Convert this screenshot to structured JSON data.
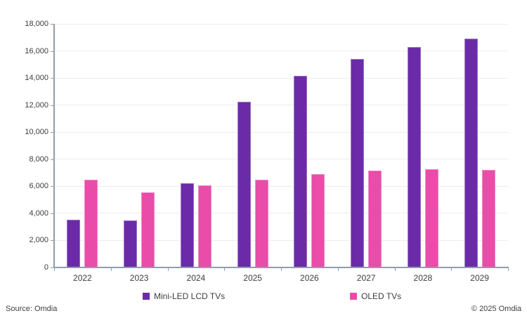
{
  "chart_data": {
    "type": "bar",
    "categories": [
      "2022",
      "2023",
      "2024",
      "2025",
      "2026",
      "2027",
      "2028",
      "2029"
    ],
    "series": [
      {
        "name": "Mini-LED LCD TVs",
        "color": "#6B2BA8",
        "values": [
          3550,
          3500,
          6200,
          12250,
          14150,
          15400,
          16300,
          16900
        ]
      },
      {
        "name": "OLED TVs",
        "color": "#E94CA9",
        "values": [
          6500,
          5550,
          6050,
          6500,
          6900,
          7150,
          7250,
          7200
        ]
      }
    ],
    "title": "",
    "xlabel": "",
    "ylabel": "",
    "ylim": [
      0,
      18000
    ],
    "ytick_step": 2000,
    "ytick_labels": [
      "0",
      "2,000",
      "4,000",
      "6,000",
      "8,000",
      "10,000",
      "12,000",
      "14,000",
      "16,000",
      "18,000"
    ],
    "grid": true,
    "legend_position": "bottom"
  },
  "style": {
    "axis_color": "#8e9dab",
    "gridline_color": "#ececec",
    "text_color": "#3d3d3d"
  },
  "footer": {
    "source": "Source: Omdia",
    "copyright": "© 2025 Omdia"
  }
}
